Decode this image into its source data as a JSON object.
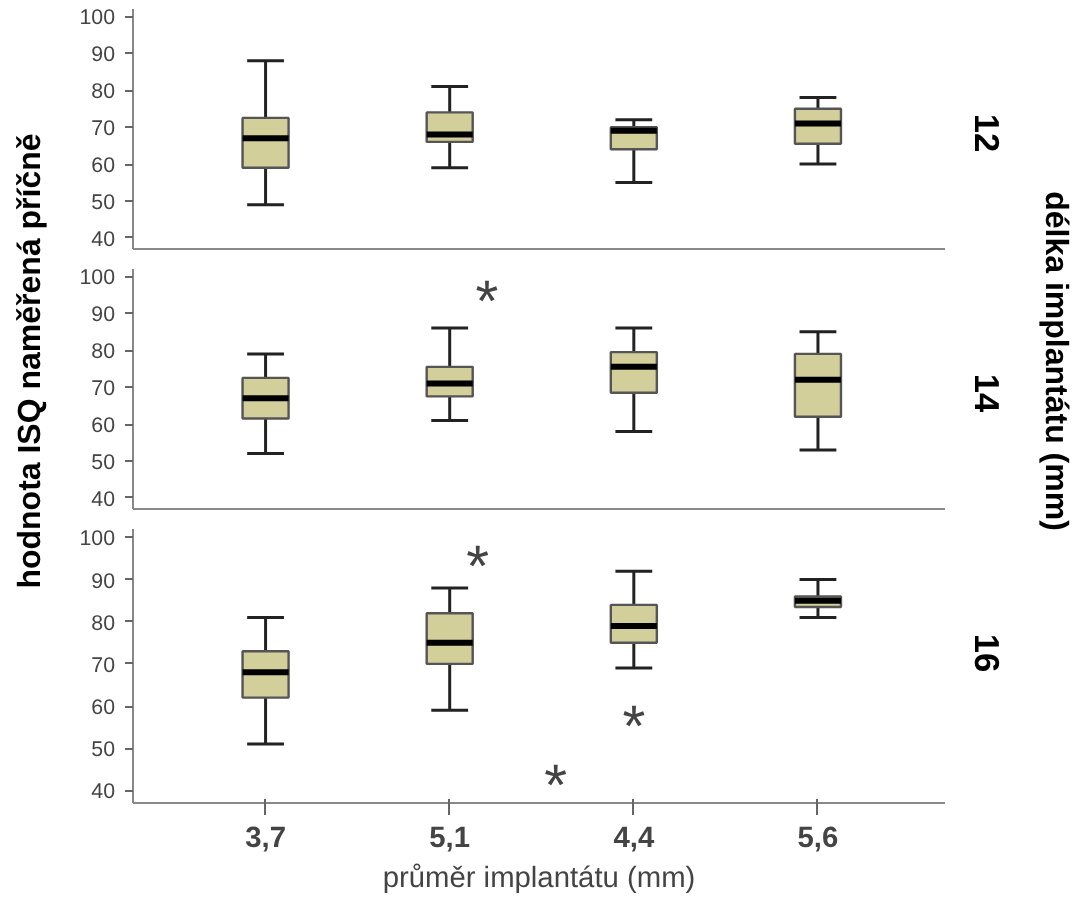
{
  "chart_data": [
    {
      "type": "box",
      "categories": [
        "3,7",
        "5,1",
        "4,4",
        "5,6"
      ],
      "color": "#d3cf9b",
      "ylim": [
        37,
        102
      ],
      "yticks": [
        40,
        50,
        60,
        70,
        80,
        90,
        100
      ],
      "tick_labels": "y",
      "annotations": [
        "12"
      ],
      "boxes": [
        {
          "low": 49,
          "q1": 59,
          "median": 67,
          "q3": 72.5,
          "high": 88
        },
        {
          "low": 59,
          "q1": 66,
          "median": 68,
          "q3": 74,
          "high": 81
        },
        {
          "low": 55,
          "q1": 64,
          "median": 69,
          "q3": 70,
          "high": 72
        },
        {
          "low": 60,
          "q1": 65.5,
          "median": 71,
          "q3": 75,
          "high": 78
        }
      ]
    },
    {
      "type": "box",
      "categories": [
        "3,7",
        "5,1",
        "4,4",
        "5,6"
      ],
      "color": "#d3cf9b",
      "ylim": [
        37,
        102
      ],
      "yticks": [
        40,
        50,
        60,
        70,
        80,
        90,
        100
      ],
      "tick_labels": "y",
      "ylabel": "hodnota ISQ naměřená příčně",
      "y2label": "délka implantátu (mm)",
      "annotations": [
        "14",
        "*"
      ],
      "boxes": [
        {
          "low": 52,
          "q1": 61.5,
          "median": 67,
          "q3": 72.5,
          "high": 79
        },
        {
          "low": 61,
          "q1": 67.5,
          "median": 71,
          "q3": 75.5,
          "high": 86
        },
        {
          "low": 58,
          "q1": 68.5,
          "median": 75.5,
          "q3": 79.5,
          "high": 86
        },
        {
          "low": 53,
          "q1": 62,
          "median": 72,
          "q3": 79,
          "high": 85
        }
      ]
    },
    {
      "type": "box",
      "categories": [
        "3,7",
        "5,1",
        "4,4",
        "5,6"
      ],
      "color": "#d3cf9b",
      "ylim": [
        37,
        102
      ],
      "yticks": [
        40,
        50,
        60,
        70,
        80,
        90,
        100
      ],
      "xlabel": "průměr implantátu (mm)",
      "annotations": [
        "16",
        "*",
        "*",
        "*"
      ],
      "boxes": [
        {
          "low": 51,
          "q1": 62,
          "median": 68,
          "q3": 73,
          "high": 81
        },
        {
          "low": 59,
          "q1": 70,
          "median": 75,
          "q3": 82,
          "high": 88
        },
        {
          "low": 69,
          "q1": 75,
          "median": 79,
          "q3": 84,
          "high": 92
        },
        {
          "low": 81,
          "q1": 83.5,
          "median": 85,
          "q3": 86,
          "high": 90
        }
      ]
    }
  ]
}
